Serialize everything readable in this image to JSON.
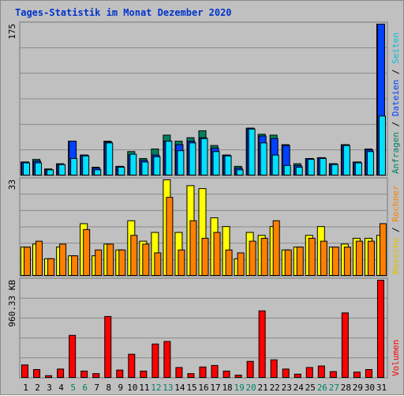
{
  "page_title": "Tages-Statistik im Monat Dezember 2020",
  "colors": {
    "background": "#c0c0c0",
    "grid": "#8a8a8a",
    "hits": "#008060",
    "files": "#0040ff",
    "pages": "#00e0ff",
    "visits": "#ffff00",
    "sites": "#ff8000",
    "kbytes": "#ff0000",
    "weekend_label": "#008060",
    "title": "#0033cc"
  },
  "legend": {
    "top": [
      {
        "text": "Anfragen",
        "color": "#008060"
      },
      {
        "text": " / ",
        "color": "#000000"
      },
      {
        "text": "Dateien",
        "color": "#0040ff"
      },
      {
        "text": " / ",
        "color": "#000000"
      },
      {
        "text": "Seiten",
        "color": "#00c0e0"
      }
    ],
    "middle": [
      {
        "text": "Besuche",
        "color": "#e0c000"
      },
      {
        "text": " / ",
        "color": "#000000"
      },
      {
        "text": "Rechner",
        "color": "#ff8000"
      }
    ],
    "bottom": [
      {
        "text": "Volumen",
        "color": "#ff0000"
      }
    ]
  },
  "chart_data": [
    {
      "type": "bar",
      "panel": "top",
      "y_max_label": "175",
      "ylim": [
        0,
        175
      ],
      "x": [
        "1",
        "2",
        "3",
        "4",
        "5",
        "6",
        "7",
        "8",
        "9",
        "10",
        "11",
        "12",
        "13",
        "14",
        "15",
        "16",
        "17",
        "18",
        "19",
        "20",
        "21",
        "22",
        "23",
        "24",
        "25",
        "26",
        "27",
        "28",
        "29",
        "30",
        "31"
      ],
      "series": [
        {
          "name": "Anfragen",
          "values": [
            16,
            19,
            8,
            14,
            40,
            24,
            10,
            40,
            11,
            28,
            20,
            31,
            47,
            40,
            44,
            52,
            35,
            24,
            11,
            55,
            48,
            47,
            36,
            14,
            20,
            21,
            14,
            36,
            16,
            31,
            175
          ]
        },
        {
          "name": "Dateien",
          "values": [
            16,
            17,
            7,
            13,
            40,
            24,
            9,
            39,
            11,
            24,
            18,
            24,
            40,
            36,
            40,
            44,
            32,
            24,
            9,
            55,
            46,
            43,
            35,
            12,
            20,
            21,
            14,
            36,
            16,
            30,
            175
          ]
        },
        {
          "name": "Seiten",
          "values": [
            15,
            15,
            7,
            13,
            20,
            23,
            7,
            38,
            10,
            25,
            16,
            22,
            40,
            29,
            38,
            43,
            28,
            23,
            7,
            54,
            38,
            24,
            12,
            10,
            19,
            20,
            13,
            35,
            15,
            28,
            69
          ]
        }
      ]
    },
    {
      "type": "bar",
      "panel": "middle",
      "y_max_label": "33",
      "ylim": [
        0,
        33
      ],
      "x": [
        "1",
        "2",
        "3",
        "4",
        "5",
        "6",
        "7",
        "8",
        "9",
        "10",
        "11",
        "12",
        "13",
        "14",
        "15",
        "16",
        "17",
        "18",
        "19",
        "20",
        "21",
        "22",
        "23",
        "24",
        "25",
        "26",
        "27",
        "28",
        "29",
        "30",
        "31"
      ],
      "series": [
        {
          "name": "Besuche",
          "values": [
            10,
            11,
            6,
            10,
            7,
            18,
            7,
            11,
            9,
            19,
            12,
            15,
            33,
            15,
            31,
            30,
            20,
            17,
            6,
            15,
            14,
            17,
            9,
            10,
            14,
            17,
            10,
            11,
            13,
            13,
            14
          ]
        },
        {
          "name": "Rechner",
          "values": [
            10,
            12,
            6,
            11,
            7,
            16,
            9,
            11,
            9,
            14,
            11,
            8,
            27,
            9,
            19,
            13,
            15,
            9,
            8,
            12,
            13,
            19,
            9,
            10,
            13,
            12,
            10,
            10,
            12,
            12,
            18
          ]
        }
      ]
    },
    {
      "type": "bar",
      "panel": "bottom",
      "y_max_label": "960.33 KB",
      "y_max_value": 960.33,
      "y_unit": "KB",
      "ylim": [
        0,
        960.33
      ],
      "x": [
        "1",
        "2",
        "3",
        "4",
        "5",
        "6",
        "7",
        "8",
        "9",
        "10",
        "11",
        "12",
        "13",
        "14",
        "15",
        "16",
        "17",
        "18",
        "19",
        "20",
        "21",
        "22",
        "23",
        "24",
        "25",
        "26",
        "27",
        "28",
        "29",
        "30",
        "31"
      ],
      "series": [
        {
          "name": "Volumen",
          "values": [
            130,
            85,
            25,
            90,
            420,
            70,
            45,
            605,
            80,
            235,
            70,
            335,
            360,
            105,
            45,
            110,
            125,
            70,
            30,
            165,
            660,
            180,
            90,
            40,
            105,
            120,
            65,
            640,
            60,
            85,
            960.33
          ]
        }
      ]
    }
  ],
  "x_axis": {
    "labels": [
      "1",
      "2",
      "3",
      "4",
      "5",
      "6",
      "7",
      "8",
      "9",
      "10",
      "11",
      "12",
      "13",
      "14",
      "15",
      "16",
      "17",
      "18",
      "19",
      "20",
      "21",
      "22",
      "23",
      "24",
      "25",
      "26",
      "27",
      "28",
      "29",
      "30",
      "31"
    ],
    "weekend_days": [
      "5",
      "6",
      "12",
      "13",
      "19",
      "20",
      "26",
      "27"
    ]
  }
}
